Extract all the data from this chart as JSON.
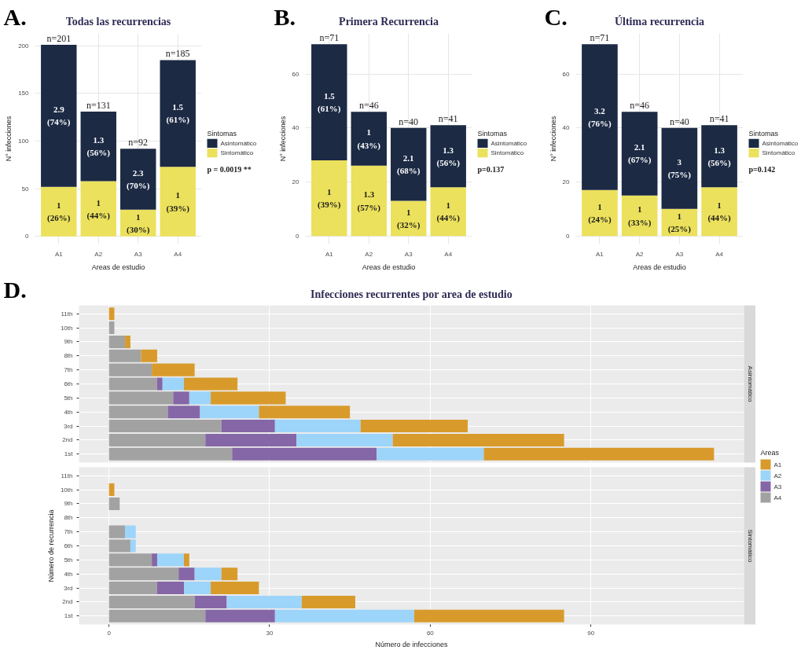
{
  "chart_data": [
    {
      "type": "bar",
      "title": "Todas las recurrencias",
      "xlabel": "Areas de estudio",
      "ylabel": "N° infecciones",
      "legend_title": "Sintomas",
      "legend": "right",
      "categories": [
        "A1",
        "A2",
        "A3",
        "A4"
      ],
      "stacked": true,
      "series": [
        {
          "name": "Sintomático",
          "color": "#ebe15c",
          "values": [
            52,
            58,
            28,
            73
          ]
        },
        {
          "name": "Asintomático",
          "color": "#1c2a44",
          "values": [
            149,
            73,
            64,
            112
          ]
        }
      ],
      "totals": [
        "n=201",
        "n=131",
        "n=92",
        "n=185"
      ],
      "ylim": [
        -8,
        213
      ],
      "yticks": [
        0,
        50,
        100,
        150,
        200
      ],
      "grid": true,
      "annotations": [
        "A.",
        "p = 0.0019 **",
        "2.9\n(74%)",
        "1\n(26%)",
        "1.3\n(56%)",
        "1\n(44%)",
        "2.3\n(70%)",
        "1\n(30%)",
        "1.5\n(61%)",
        "1\n(39%)"
      ]
    },
    {
      "type": "bar",
      "title": "Primera Recurrencia",
      "xlabel": "Areas de estudio",
      "ylabel": "N° infecciones",
      "legend_title": "Sintomas",
      "legend": "right",
      "categories": [
        "A1",
        "A2",
        "A3",
        "A4"
      ],
      "stacked": true,
      "series": [
        {
          "name": "Sintomático",
          "color": "#ebe15c",
          "values": [
            28,
            26,
            13,
            18
          ]
        },
        {
          "name": "Asintomático",
          "color": "#1c2a44",
          "values": [
            43,
            20,
            27,
            23
          ]
        }
      ],
      "totals": [
        "n=71",
        "n=46",
        "n=40",
        "n=41"
      ],
      "ylim": [
        -3,
        75
      ],
      "yticks": [
        0,
        20,
        40,
        60
      ],
      "grid": true,
      "annotations": [
        "B.",
        "p=0.137",
        "1.5\n(61%)",
        "1\n(39%)",
        "1\n(43%)",
        "1.3\n(57%)",
        "2.1\n(68%)",
        "1\n(32%)",
        "1.3\n(56%)",
        "1\n(44%)"
      ]
    },
    {
      "type": "bar",
      "title": "Última recurrencia",
      "xlabel": "Areas de estudio",
      "ylabel": "N° infecciones",
      "legend_title": "Sintomas",
      "legend": "right",
      "categories": [
        "A1",
        "A2",
        "A3",
        "A4"
      ],
      "stacked": true,
      "series": [
        {
          "name": "Sintomático",
          "color": "#ebe15c",
          "values": [
            17,
            15,
            10,
            18
          ]
        },
        {
          "name": "Asintomático",
          "color": "#1c2a44",
          "values": [
            54,
            31,
            30,
            23
          ]
        }
      ],
      "totals": [
        "n=71",
        "n=46",
        "n=40",
        "n=41"
      ],
      "ylim": [
        -3,
        75
      ],
      "yticks": [
        0,
        20,
        40,
        60
      ],
      "grid": true,
      "annotations": [
        "C.",
        "p=0.142",
        "3.2\n(76%)",
        "1\n(24%)",
        "2.1\n(67%)",
        "1\n(33%)",
        "3\n(75%)",
        "1\n(25%)",
        "1.3\n(56%)",
        "1\n(44%)"
      ]
    },
    {
      "type": "bar",
      "orientation": "horizontal",
      "stacked": true,
      "title": "Infecciones recurrentes por area de estudio",
      "subtitle": "Asintomático",
      "annotations": [
        "D."
      ],
      "legend_title": "Areas",
      "legend": "right",
      "categories": [
        "11th",
        "10th",
        "9th",
        "8th",
        "7th",
        "6th",
        "5th",
        "4th",
        "3rd",
        "2nd",
        "1st"
      ],
      "series": [
        {
          "name": "A4",
          "color": "#a2a2a2",
          "values": [
            null,
            1,
            3,
            6,
            8,
            9,
            12,
            11,
            21,
            18,
            23
          ]
        },
        {
          "name": "A3",
          "color": "#8566a6",
          "values": [
            null,
            null,
            null,
            null,
            null,
            1,
            3,
            6,
            10,
            17,
            27
          ]
        },
        {
          "name": "A2",
          "color": "#9dd4fa",
          "values": [
            null,
            null,
            null,
            null,
            null,
            4,
            4,
            11,
            16,
            18,
            20
          ]
        },
        {
          "name": "A1",
          "color": "#d89b2b",
          "values": [
            1,
            null,
            1,
            3,
            8,
            10,
            14,
            17,
            20,
            32,
            43
          ]
        }
      ],
      "xlim": [
        -5.6,
        118.6
      ],
      "xticks": [
        0,
        30,
        60,
        90
      ],
      "tick_labels": "y",
      "grid": true
    },
    {
      "type": "bar",
      "orientation": "horizontal",
      "stacked": true,
      "subtitle": "Sintomático",
      "xlabel": "Número de infecciones",
      "ylabel": "Número de recurrencia",
      "categories": [
        "11th",
        "10th",
        "9th",
        "8th",
        "7th",
        "6th",
        "5th",
        "4th",
        "3rd",
        "2nd",
        "1st"
      ],
      "series": [
        {
          "name": "A4",
          "color": "#a2a2a2",
          "values": [
            null,
            null,
            2,
            null,
            3,
            4,
            8,
            13,
            9,
            16,
            18
          ]
        },
        {
          "name": "A3",
          "color": "#8566a6",
          "values": [
            null,
            null,
            null,
            null,
            null,
            null,
            1,
            3,
            5,
            6,
            13
          ]
        },
        {
          "name": "A2",
          "color": "#9dd4fa",
          "values": [
            null,
            null,
            null,
            null,
            2,
            1,
            5,
            5,
            5,
            14,
            26
          ]
        },
        {
          "name": "A1",
          "color": "#d89b2b",
          "values": [
            null,
            1,
            null,
            null,
            null,
            null,
            1,
            3,
            9,
            10,
            28
          ]
        }
      ],
      "xlim": [
        -5.6,
        118.6
      ],
      "xticks": [
        0,
        30,
        60,
        90
      ],
      "grid": true
    }
  ]
}
